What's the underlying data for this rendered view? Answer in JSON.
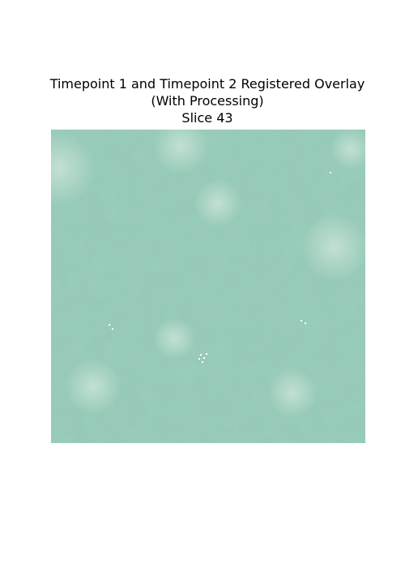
{
  "figure": {
    "title_lines": [
      "Timepoint 1 and Timepoint 2 Registered Overlay",
      "(With Processing)",
      "Slice 43"
    ],
    "image": {
      "kind": "registered-overlay-slice",
      "colors": {
        "base": "#9fcbb4",
        "light": "#c9e6d4",
        "mid": "#7fb7a0",
        "dark": "#3f7d74",
        "darkest": "#245f5d",
        "speck": "#ffffff"
      }
    }
  }
}
